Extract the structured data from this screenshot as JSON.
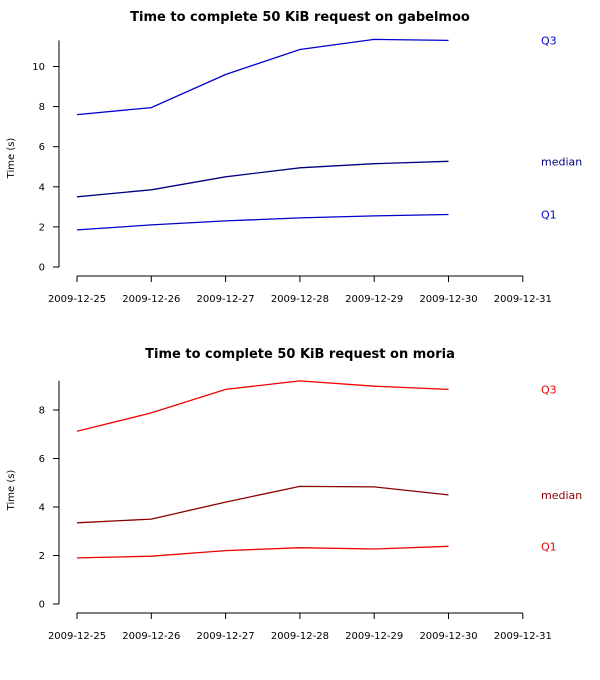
{
  "chart_data": [
    {
      "type": "line",
      "title": "Time to complete 50 KiB request on gabelmoo",
      "xlabel": "",
      "ylabel": "Time (s)",
      "x_ticks": [
        "2009-12-25",
        "2009-12-26",
        "2009-12-27",
        "2009-12-28",
        "2009-12-29",
        "2009-12-30",
        "2009-12-31"
      ],
      "y_ticks": [
        0,
        2,
        4,
        6,
        8,
        10
      ],
      "ylim": [
        0,
        11.3
      ],
      "grid": false,
      "legend": "right-of-lines",
      "series": [
        {
          "name": "Q3",
          "color": "#0000cc",
          "values": [
            7.6,
            7.95,
            9.6,
            10.85,
            11.35,
            11.3
          ]
        },
        {
          "name": "median",
          "color": "#000080",
          "values": [
            3.5,
            3.85,
            4.5,
            4.95,
            5.15,
            5.27
          ]
        },
        {
          "name": "Q1",
          "color": "#0000cc",
          "values": [
            1.85,
            2.1,
            2.3,
            2.45,
            2.55,
            2.62
          ]
        }
      ]
    },
    {
      "type": "line",
      "title": "Time to complete 50 KiB request on moria",
      "xlabel": "",
      "ylabel": "Time (s)",
      "x_ticks": [
        "2009-12-25",
        "2009-12-26",
        "2009-12-27",
        "2009-12-28",
        "2009-12-29",
        "2009-12-30",
        "2009-12-31"
      ],
      "y_ticks": [
        0,
        2,
        4,
        6,
        8
      ],
      "ylim": [
        0,
        9.2
      ],
      "grid": false,
      "legend": "right-of-lines",
      "series": [
        {
          "name": "Q3",
          "color": "#ee0000",
          "values": [
            7.12,
            7.88,
            8.85,
            9.2,
            8.98,
            8.85
          ]
        },
        {
          "name": "median",
          "color": "#8b0000",
          "values": [
            3.35,
            3.5,
            4.2,
            4.85,
            4.83,
            4.5
          ]
        },
        {
          "name": "Q1",
          "color": "#ee0000",
          "values": [
            1.9,
            1.97,
            2.2,
            2.32,
            2.27,
            2.38
          ]
        }
      ]
    }
  ]
}
